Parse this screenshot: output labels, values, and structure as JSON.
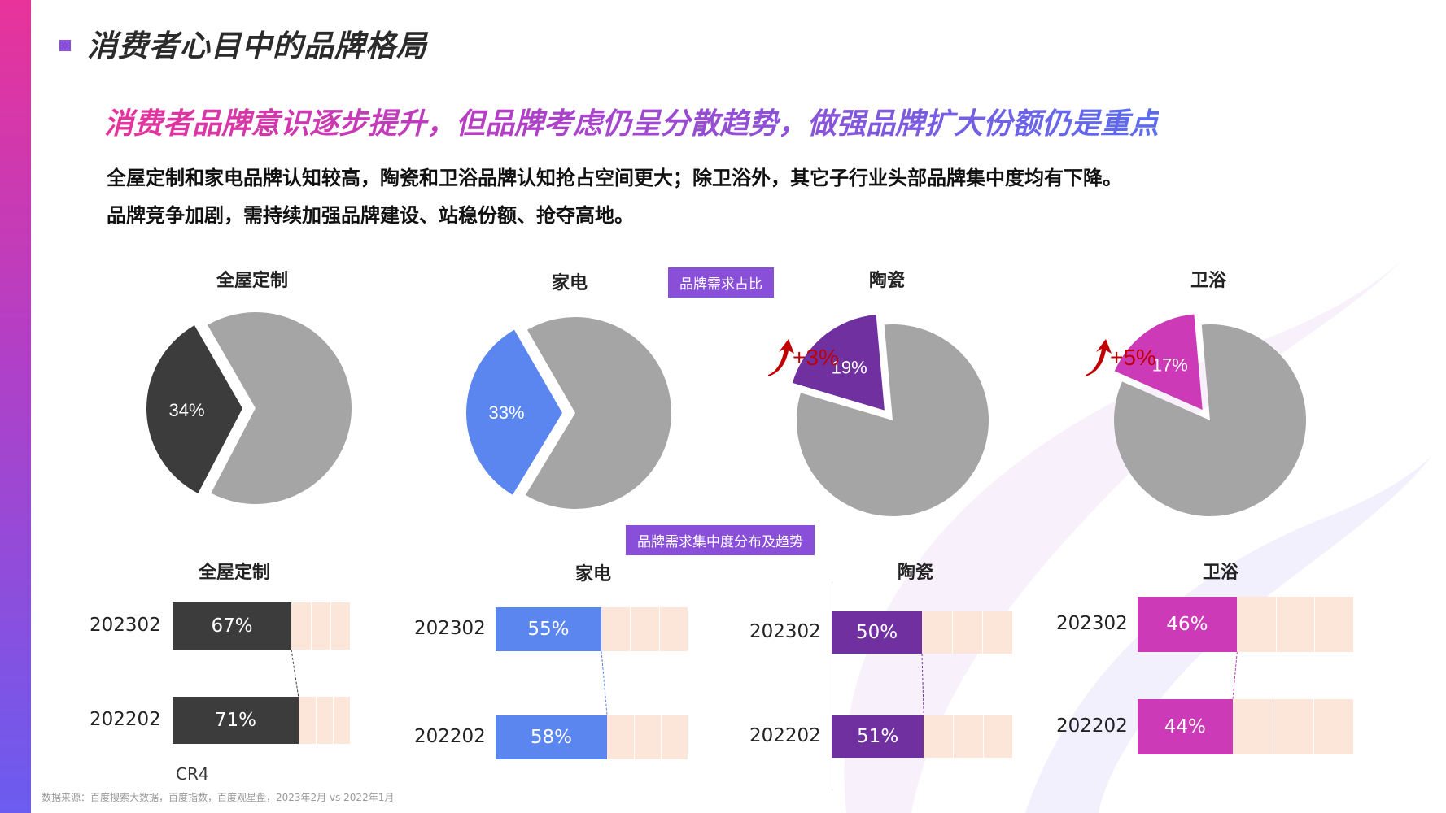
{
  "title": "消费者心目中的品牌格局",
  "headline": "消费者品牌意识逐步提升，但品牌考虑仍呈分散趋势，做强品牌扩大份额仍是重点",
  "body_lines": [
    "全屋定制和家电品牌认知较高，陶瓷和卫浴品牌认知抢占空间更大；除卫浴外，其它子行业头部品牌集中度均有下降。",
    "品牌竞争加剧，需持续加强品牌建设、站稳份额、抢夺高地。"
  ],
  "section_labels": {
    "pie": "品牌需求占比",
    "bar": "品牌需求集中度分布及趋势"
  },
  "colors": {
    "全屋定制": "#3c3c3c",
    "家电": "#5b86f0",
    "陶瓷": "#7030a0",
    "卫浴": "#cc3ab8",
    "remainder": "#a5a5a5",
    "bar_bg": "#fbe6d9",
    "up_arrow": "#c00000"
  },
  "chart_data": [
    {
      "type": "pie",
      "title": "品牌需求占比",
      "categories": [
        "全屋定制",
        "家电",
        "陶瓷",
        "卫浴"
      ],
      "values": [
        34,
        33,
        19,
        17
      ],
      "labels": [
        "34%",
        "33%",
        "19%",
        "17%"
      ],
      "change_labels": [
        "",
        "",
        "+3%",
        "+5%"
      ]
    },
    {
      "type": "bar",
      "title": "品牌需求集中度分布及趋势",
      "categories": [
        "全屋定制",
        "家电",
        "陶瓷",
        "卫浴"
      ],
      "series": [
        {
          "name": "202302",
          "values": [
            67,
            55,
            50,
            46
          ],
          "labels": [
            "67%",
            "55%",
            "50%",
            "46%"
          ]
        },
        {
          "name": "202202",
          "values": [
            71,
            58,
            51,
            44
          ],
          "labels": [
            "71%",
            "58%",
            "51%",
            "44%"
          ]
        }
      ],
      "ylim": [
        0,
        100
      ],
      "xlabel": "CR4"
    }
  ],
  "source": "数据来源：百度搜索大数据，百度指数，百度观星盘，2023年2月 vs 2022年1月"
}
